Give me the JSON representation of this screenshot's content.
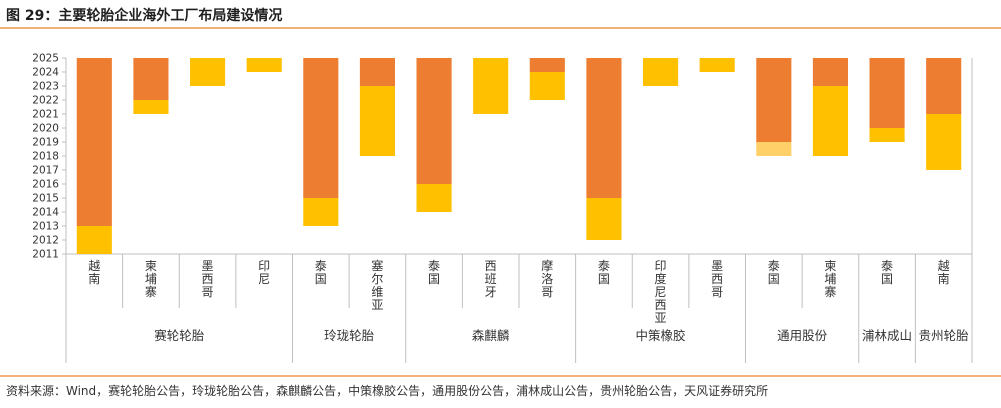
{
  "title": "图 29：主要轮胎企业海外工厂布局建设情况",
  "source": "资料来源：Wind，赛轮轮胎公告，玲珑轮胎公告，森麒麟公告，中策橡胶公告，通用股份公告，浦林成山公告，贵州轮胎公告，天风证券研究所",
  "colors": {
    "dark": "#ed7d31",
    "light": "#ffc000",
    "pale": "#ffd067",
    "axis": "#bfbfbf"
  },
  "chart_data": {
    "type": "bar",
    "subtype": "floating stacked bar (timeline by year)",
    "title": "图 29：主要轮胎企业海外工厂布局建设情况",
    "ylim": [
      2011,
      2025
    ],
    "yticks": [
      "2011",
      "2012",
      "2013",
      "2014",
      "2015",
      "2016",
      "2017",
      "2018",
      "2019",
      "2020",
      "2021",
      "2022",
      "2023",
      "2024",
      "2025"
    ],
    "groups": [
      {
        "company": "赛轮轮胎",
        "items": [
          {
            "country": "越南",
            "segments": [
              {
                "from": 2013,
                "to": 2025,
                "color": "dark"
              },
              {
                "from": 2011,
                "to": 2013,
                "color": "light"
              }
            ]
          },
          {
            "country": "柬埔寨",
            "segments": [
              {
                "from": 2022,
                "to": 2025,
                "color": "dark"
              },
              {
                "from": 2021,
                "to": 2022,
                "color": "light"
              }
            ]
          },
          {
            "country": "墨西哥",
            "segments": [
              {
                "from": 2023,
                "to": 2025,
                "color": "light"
              }
            ]
          },
          {
            "country": "印尼",
            "segments": [
              {
                "from": 2024,
                "to": 2025,
                "color": "light"
              }
            ]
          }
        ]
      },
      {
        "company": "玲珑轮胎",
        "items": [
          {
            "country": "泰国",
            "segments": [
              {
                "from": 2015,
                "to": 2025,
                "color": "dark"
              },
              {
                "from": 2013,
                "to": 2015,
                "color": "light"
              }
            ]
          },
          {
            "country": "塞尔维亚",
            "segments": [
              {
                "from": 2023,
                "to": 2025,
                "color": "dark"
              },
              {
                "from": 2018,
                "to": 2023,
                "color": "light"
              }
            ]
          }
        ]
      },
      {
        "company": "森麒麟",
        "items": [
          {
            "country": "泰国",
            "segments": [
              {
                "from": 2016,
                "to": 2025,
                "color": "dark"
              },
              {
                "from": 2014,
                "to": 2016,
                "color": "light"
              }
            ]
          },
          {
            "country": "西班牙",
            "segments": [
              {
                "from": 2021,
                "to": 2025,
                "color": "light"
              }
            ]
          },
          {
            "country": "摩洛哥",
            "segments": [
              {
                "from": 2024,
                "to": 2025,
                "color": "dark"
              },
              {
                "from": 2022,
                "to": 2024,
                "color": "light"
              }
            ]
          }
        ]
      },
      {
        "company": "中策橡胶",
        "items": [
          {
            "country": "泰国",
            "segments": [
              {
                "from": 2015,
                "to": 2025,
                "color": "dark"
              },
              {
                "from": 2012,
                "to": 2015,
                "color": "light"
              }
            ]
          },
          {
            "country": "印度尼西亚",
            "segments": [
              {
                "from": 2023,
                "to": 2025,
                "color": "light"
              }
            ]
          },
          {
            "country": "墨西哥",
            "segments": [
              {
                "from": 2024,
                "to": 2025,
                "color": "light"
              }
            ]
          }
        ]
      },
      {
        "company": "通用股份",
        "items": [
          {
            "country": "泰国",
            "segments": [
              {
                "from": 2019,
                "to": 2025,
                "color": "dark"
              },
              {
                "from": 2018,
                "to": 2019,
                "color": "pale"
              }
            ]
          },
          {
            "country": "柬埔寨",
            "segments": [
              {
                "from": 2023,
                "to": 2025,
                "color": "dark"
              },
              {
                "from": 2018,
                "to": 2023,
                "color": "light"
              }
            ]
          }
        ]
      },
      {
        "company": "浦林成山",
        "items": [
          {
            "country": "泰国",
            "segments": [
              {
                "from": 2020,
                "to": 2025,
                "color": "dark"
              },
              {
                "from": 2019,
                "to": 2020,
                "color": "light"
              }
            ]
          }
        ]
      },
      {
        "company": "贵州轮胎",
        "items": [
          {
            "country": "越南",
            "segments": [
              {
                "from": 2021,
                "to": 2025,
                "color": "dark"
              },
              {
                "from": 2017,
                "to": 2021,
                "color": "light"
              }
            ]
          }
        ]
      }
    ]
  }
}
